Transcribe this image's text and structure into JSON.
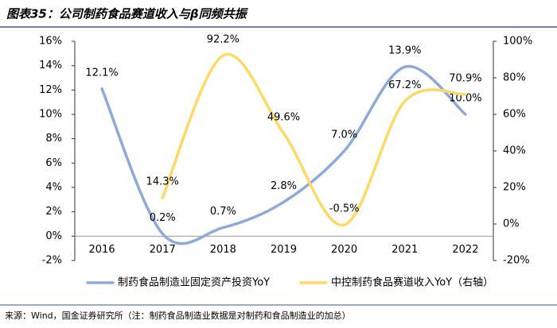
{
  "chart_data": {
    "type": "line",
    "title": "图表35：公司制药食品赛道收入与β同频共振",
    "source": "来源：Wind，国金证券研究所（注：制药食品制造业数据是对制药和食品制造业的加总）",
    "categories": [
      "2016",
      "2017",
      "2018",
      "2019",
      "2020",
      "2021",
      "2022"
    ],
    "series": [
      {
        "name": "制药食品制造业固定资产投资YoY",
        "color": "#8eaadb",
        "values": [
          12.1,
          0.2,
          0.7,
          2.8,
          7.0,
          13.9,
          10.0
        ],
        "value_labels": [
          "12.1%",
          "0.2%",
          "0.7%",
          "2.8%",
          "7.0%",
          "13.9%",
          "10.0%"
        ]
      },
      {
        "name": "中控制药食品赛道收入YoY（右轴）",
        "color": "#ffd966",
        "axis": "y2",
        "values": [
          null,
          14.3,
          92.2,
          49.6,
          -0.5,
          67.2,
          70.9
        ],
        "value_labels": [
          null,
          "14.3%",
          "92.2%",
          "49.6%",
          "-0.5%",
          "67.2%",
          "70.9%"
        ]
      }
    ],
    "ylim": [
      -2,
      16
    ],
    "yticks": [
      {
        "value": -2,
        "label": "-2%"
      },
      {
        "value": 0,
        "label": "0%"
      },
      {
        "value": 2,
        "label": "2%"
      },
      {
        "value": 4,
        "label": "4%"
      },
      {
        "value": 6,
        "label": "6%"
      },
      {
        "value": 8,
        "label": "8%"
      },
      {
        "value": 10,
        "label": "10%"
      },
      {
        "value": 12,
        "label": "12%"
      },
      {
        "value": 14,
        "label": "14%"
      },
      {
        "value": 16,
        "label": "16%"
      }
    ],
    "y2lim": [
      -20,
      100
    ],
    "y2ticks": [
      {
        "value": -20,
        "label": "-20%"
      },
      {
        "value": 0,
        "label": "0%"
      },
      {
        "value": 20,
        "label": "20%"
      },
      {
        "value": 40,
        "label": "40%"
      },
      {
        "value": 60,
        "label": "60%"
      },
      {
        "value": 80,
        "label": "80%"
      },
      {
        "value": 100,
        "label": "100%"
      }
    ],
    "legend": "bottom"
  }
}
